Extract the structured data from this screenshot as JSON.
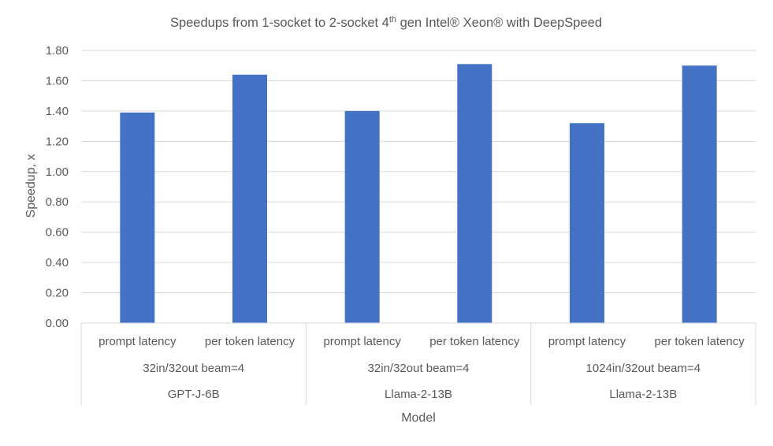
{
  "chart_data": {
    "type": "bar",
    "title_parts": {
      "before": "Speedups from 1-socket to 2-socket 4",
      "sup": "th",
      "after": " gen Intel® Xeon® with DeepSpeed"
    },
    "ylabel": "Speedup, x",
    "xlabel": "Model",
    "ylim": [
      0,
      1.8
    ],
    "yticks": [
      "0.00",
      "0.20",
      "0.40",
      "0.60",
      "0.80",
      "1.00",
      "1.20",
      "1.40",
      "1.60",
      "1.80"
    ],
    "grid": true,
    "bar_color": "#4472C4",
    "categories": [
      "prompt latency",
      "per token latency",
      "prompt latency",
      "per token latency",
      "prompt latency",
      "per token latency"
    ],
    "values": [
      1.39,
      1.64,
      1.4,
      1.71,
      1.32,
      1.7
    ],
    "groups_level2": [
      "32in/32out beam=4",
      "32in/32out beam=4",
      "1024in/32out beam=4"
    ],
    "groups_level3": [
      "GPT-J-6B",
      "Llama-2-13B",
      "Llama-2-13B"
    ]
  }
}
